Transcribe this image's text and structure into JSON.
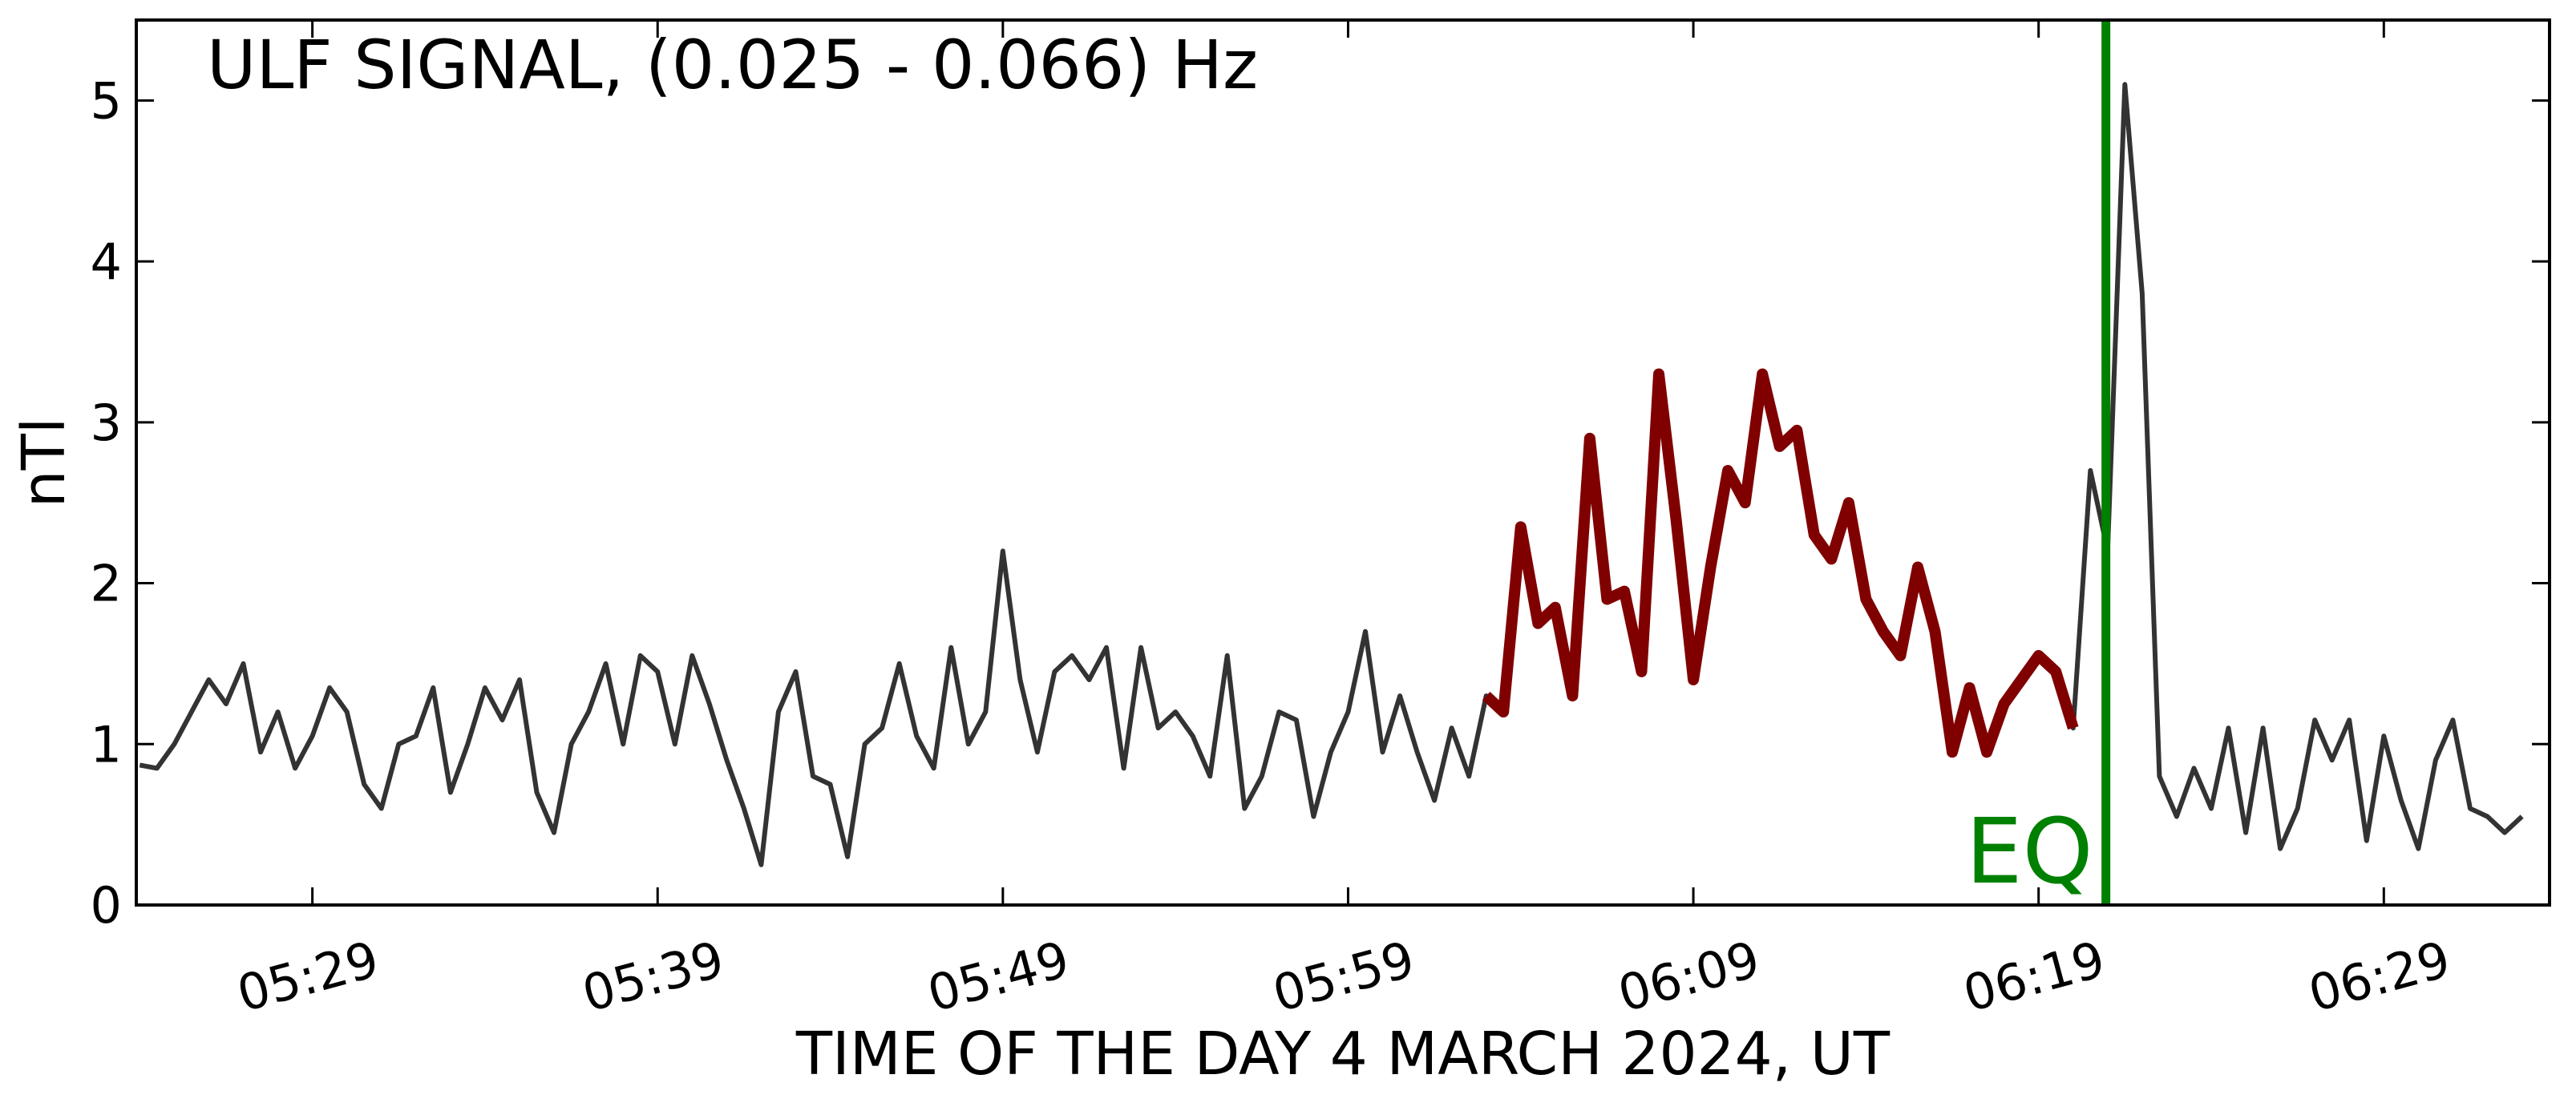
{
  "chart_data": {
    "type": "line",
    "title": "ULF SIGNAL, (0.025 - 0.066) Hz",
    "xlabel": "TIME OF THE DAY 4 MARCH 2024, UT",
    "ylabel": "nTl",
    "x": [
      324,
      324.5,
      325,
      325.5,
      326,
      326.5,
      327,
      327.5,
      328,
      328.5,
      329,
      329.5,
      330,
      330.5,
      331,
      331.5,
      332,
      332.5,
      333,
      333.5,
      334,
      334.5,
      335,
      335.5,
      336,
      336.5,
      337,
      337.5,
      338,
      338.5,
      339,
      339.5,
      340,
      340.5,
      341,
      341.5,
      342,
      342.5,
      343,
      343.5,
      344,
      344.5,
      345,
      345.5,
      346,
      346.5,
      347,
      347.5,
      348,
      348.5,
      349,
      349.5,
      350,
      350.5,
      351,
      351.5,
      352,
      352.5,
      353,
      353.5,
      354,
      354.5,
      355,
      355.5,
      356,
      356.5,
      357,
      357.5,
      358,
      358.5,
      359,
      359.5,
      360,
      360.5,
      361,
      361.5,
      362,
      362.5,
      363,
      363.5,
      364,
      364.5,
      365,
      365.5,
      366,
      366.5,
      367,
      367.5,
      368,
      368.5,
      369,
      369.5,
      370,
      370.5,
      371,
      371.5,
      372,
      372.5,
      373,
      373.5,
      374,
      374.5,
      375,
      375.5,
      376,
      376.5,
      377,
      377.5,
      378,
      378.5,
      379,
      379.5,
      380,
      380.5,
      381,
      381.5,
      382,
      382.5,
      383,
      383.5,
      384,
      384.5,
      385,
      385.5,
      386,
      386.5,
      387,
      387.5,
      388,
      388.5,
      389,
      389.5,
      390,
      390.5,
      391,
      391.5,
      392,
      392.5,
      393
    ],
    "series": [
      {
        "color": "#333333",
        "width": 6,
        "values": [
          0.87,
          0.85,
          1.0,
          1.2,
          1.4,
          1.25,
          1.5,
          0.95,
          1.2,
          0.85,
          1.05,
          1.35,
          1.2,
          0.75,
          0.6,
          1.0,
          1.05,
          1.35,
          0.7,
          1.0,
          1.35,
          1.15,
          1.4,
          0.7,
          0.45,
          1.0,
          1.2,
          1.5,
          1.0,
          1.55,
          1.45,
          1.0,
          1.55,
          1.25,
          0.9,
          0.6,
          0.25,
          1.2,
          1.45,
          0.8,
          0.75,
          0.3,
          1.0,
          1.1,
          1.5,
          1.05,
          0.85,
          1.6,
          1.0,
          1.2,
          2.2,
          1.4,
          0.95,
          1.45,
          1.55,
          1.4,
          1.6,
          0.85,
          1.6,
          1.1,
          1.2,
          1.05,
          0.8,
          1.55,
          0.6,
          0.8,
          1.2,
          1.15,
          0.55,
          0.95,
          1.2,
          1.7,
          0.95,
          1.3,
          0.95,
          0.65,
          1.1,
          0.8,
          1.3,
          1.2,
          2.35,
          1.75,
          1.85,
          1.3,
          2.9,
          1.9,
          1.95,
          1.45,
          3.3,
          2.4,
          1.4,
          2.1,
          2.7,
          2.5,
          3.3,
          2.85,
          2.95,
          2.3,
          2.15,
          2.5,
          1.9,
          1.7,
          1.55,
          2.1,
          1.7,
          0.95,
          1.35,
          0.95,
          1.25,
          1.4,
          1.55,
          1.45,
          1.1,
          2.7,
          2.2,
          5.1,
          3.8,
          0.8,
          0.55,
          0.85,
          0.6,
          1.1,
          0.45,
          1.1,
          0.35,
          0.6,
          1.15,
          0.9,
          1.15,
          0.4,
          1.05,
          0.65,
          0.35,
          0.9,
          1.15,
          0.6,
          0.55,
          0.45,
          0.55
        ]
      },
      {
        "color": "#800000",
        "width": 14,
        "values": [
          null,
          null,
          null,
          null,
          null,
          null,
          null,
          null,
          null,
          null,
          null,
          null,
          null,
          null,
          null,
          null,
          null,
          null,
          null,
          null,
          null,
          null,
          null,
          null,
          null,
          null,
          null,
          null,
          null,
          null,
          null,
          null,
          null,
          null,
          null,
          null,
          null,
          null,
          null,
          null,
          null,
          null,
          null,
          null,
          null,
          null,
          null,
          null,
          null,
          null,
          null,
          null,
          null,
          null,
          null,
          null,
          null,
          null,
          null,
          null,
          null,
          null,
          null,
          null,
          null,
          null,
          null,
          null,
          null,
          null,
          null,
          null,
          null,
          null,
          null,
          null,
          null,
          null,
          1.3,
          1.2,
          2.35,
          1.75,
          1.85,
          1.3,
          2.9,
          1.9,
          1.95,
          1.45,
          3.3,
          2.4,
          1.4,
          2.1,
          2.7,
          2.5,
          3.3,
          2.85,
          2.95,
          2.3,
          2.15,
          2.5,
          1.9,
          1.7,
          1.55,
          2.1,
          1.7,
          0.95,
          1.35,
          0.95,
          1.25,
          1.4,
          1.55,
          1.45,
          1.1,
          null,
          null,
          null,
          null,
          null,
          null,
          null,
          null,
          null,
          null,
          null,
          null,
          null,
          null,
          null,
          null,
          null,
          null,
          null,
          null,
          null,
          null,
          null,
          null,
          null,
          null
        ]
      }
    ],
    "annotations": [
      {
        "text": "EQ",
        "x": 380.95,
        "color": "#008000"
      }
    ],
    "xlim": [
      323.9,
      393.8
    ],
    "xticks": [
      {
        "value": 329,
        "label": "05:29"
      },
      {
        "value": 339,
        "label": "05:39"
      },
      {
        "value": 349,
        "label": "05:49"
      },
      {
        "value": 359,
        "label": "05:59"
      },
      {
        "value": 369,
        "label": "06:09"
      },
      {
        "value": 379,
        "label": "06:19"
      },
      {
        "value": 389,
        "label": "06:29"
      }
    ],
    "ylim": [
      0,
      5.5
    ],
    "yticks": [
      0,
      1,
      2,
      3,
      4,
      5
    ],
    "grid": false
  }
}
